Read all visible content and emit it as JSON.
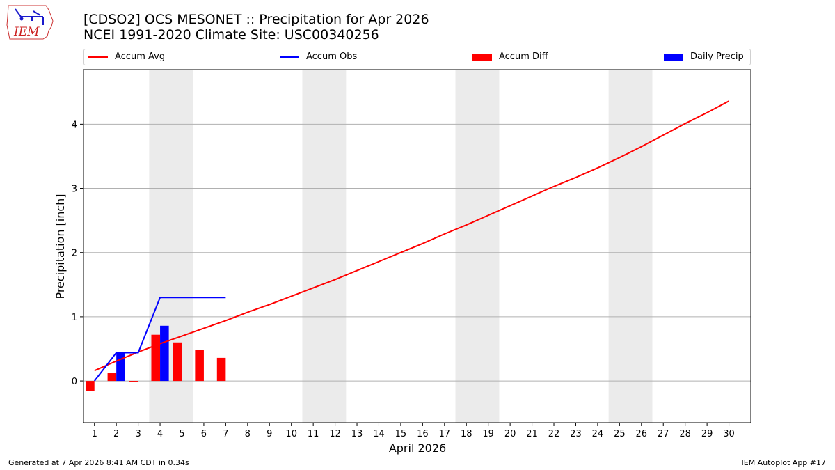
{
  "titles": {
    "line1": "[CDSO2] OCS MESONET :: Precipitation for Apr 2026",
    "line2": "NCEI 1991-2020 Climate Site: USC00340256"
  },
  "logo": {
    "text": "IEM"
  },
  "footer": {
    "left": "Generated at 7 Apr 2026 8:41 AM CDT in 0.34s",
    "right": "IEM Autoplot App #17"
  },
  "colors": {
    "avg": "#ff0000",
    "obs": "#0000ff",
    "diff": "#ff0000",
    "daily": "#0000ff",
    "weekend": "#ebebeb",
    "grid": "#b0b0b0"
  },
  "legend": [
    {
      "label": "Accum Avg",
      "kind": "line",
      "color": "#ff0000"
    },
    {
      "label": "Accum Obs",
      "kind": "line",
      "color": "#0000ff"
    },
    {
      "label": "Accum Diff",
      "kind": "box",
      "color": "#ff0000"
    },
    {
      "label": "Daily Precip",
      "kind": "box",
      "color": "#0000ff"
    }
  ],
  "chart_data": {
    "type": "bar",
    "xlabel": "April 2026",
    "ylabel": "Precipitation [inch]",
    "xlim": [
      0.5,
      31.0
    ],
    "ylim": [
      -0.65,
      4.85
    ],
    "yticks": [
      0,
      1,
      2,
      3,
      4
    ],
    "xticks": [
      1,
      2,
      3,
      4,
      5,
      6,
      7,
      8,
      9,
      10,
      11,
      12,
      13,
      14,
      15,
      16,
      17,
      18,
      19,
      20,
      21,
      22,
      23,
      24,
      25,
      26,
      27,
      28,
      29,
      30
    ],
    "grid": "y",
    "shaded_weekends": [
      [
        4,
        5
      ],
      [
        11,
        12
      ],
      [
        18,
        19
      ],
      [
        25,
        26
      ]
    ],
    "series": [
      {
        "name": "Accum Avg",
        "type": "line",
        "x": [
          1,
          2,
          3,
          4,
          5,
          6,
          7,
          8,
          9,
          10,
          11,
          12,
          13,
          14,
          15,
          16,
          17,
          18,
          19,
          20,
          21,
          22,
          23,
          24,
          25,
          26,
          27,
          28,
          29,
          30
        ],
        "values": [
          0.16,
          0.31,
          0.45,
          0.58,
          0.7,
          0.82,
          0.94,
          1.07,
          1.19,
          1.32,
          1.45,
          1.58,
          1.72,
          1.86,
          2.0,
          2.14,
          2.29,
          2.43,
          2.58,
          2.73,
          2.88,
          3.03,
          3.17,
          3.32,
          3.48,
          3.65,
          3.83,
          4.01,
          4.18,
          4.36
        ]
      },
      {
        "name": "Accum Obs",
        "type": "line",
        "x": [
          1,
          2,
          3,
          4,
          5,
          6,
          7
        ],
        "values": [
          0.0,
          0.44,
          0.44,
          1.3,
          1.3,
          1.3,
          1.3
        ]
      },
      {
        "name": "Accum Diff",
        "type": "bar",
        "x": [
          1,
          2,
          3,
          4,
          5,
          6,
          7
        ],
        "values": [
          -0.16,
          0.12,
          -0.01,
          0.72,
          0.6,
          0.48,
          0.36
        ]
      },
      {
        "name": "Daily Precip",
        "type": "bar",
        "x": [
          1,
          2,
          3,
          4,
          5,
          6,
          7
        ],
        "values": [
          0.0,
          0.44,
          0.0,
          0.86,
          0.0,
          0.0,
          0.0
        ]
      }
    ]
  }
}
